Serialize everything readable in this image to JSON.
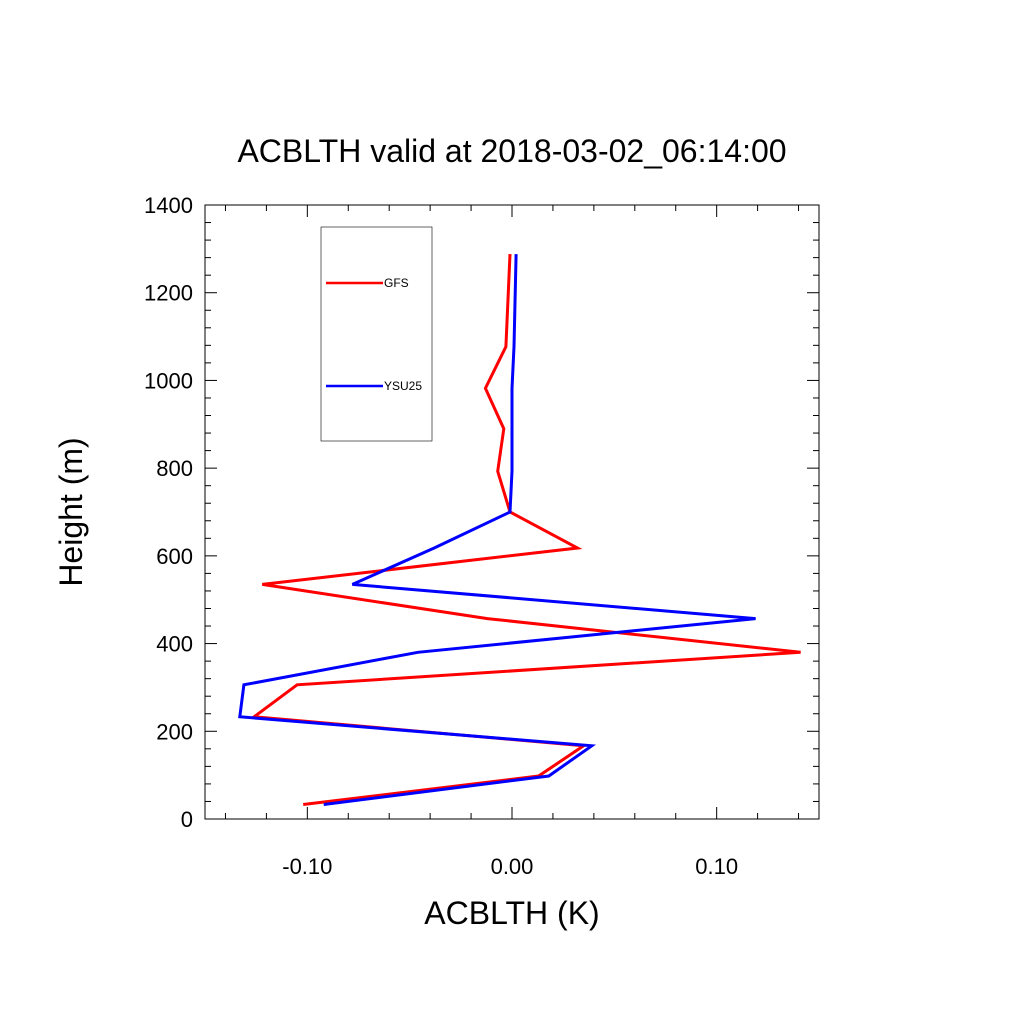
{
  "chart_data": {
    "type": "line",
    "title": "ACBLTH valid at 2018-03-02_06:14:00",
    "xlabel": "ACBLTH (K)",
    "ylabel": "Height (m)",
    "xlim": [
      -0.15,
      0.15
    ],
    "ylim": [
      0,
      1400
    ],
    "xticks": [
      -0.1,
      0.0,
      0.1
    ],
    "xtick_labels": [
      "-0.10",
      "0.00",
      "0.10"
    ],
    "yticks": [
      0,
      200,
      400,
      600,
      800,
      1000,
      1200,
      1400
    ],
    "ytick_labels": [
      "0",
      "200",
      "400",
      "600",
      "800",
      "1000",
      "1200",
      "1400"
    ],
    "grid": false,
    "legend": "upper-left",
    "series": [
      {
        "name": "GFS",
        "color": "#ff0000",
        "points": [
          [
            -0.102,
            33
          ],
          [
            0.013,
            98
          ],
          [
            0.035,
            167
          ],
          [
            -0.126,
            233
          ],
          [
            -0.105,
            306
          ],
          [
            0.141,
            380
          ],
          [
            -0.012,
            457
          ],
          [
            -0.122,
            535
          ],
          [
            0.032,
            618
          ],
          [
            -0.001,
            700
          ],
          [
            -0.007,
            793
          ],
          [
            -0.004,
            890
          ],
          [
            -0.013,
            982
          ],
          [
            -0.003,
            1077
          ],
          [
            -0.001,
            1288
          ]
        ]
      },
      {
        "name": "YSU25",
        "color": "#0000ff",
        "points": [
          [
            -0.092,
            33
          ],
          [
            0.018,
            98
          ],
          [
            0.039,
            167
          ],
          [
            -0.133,
            233
          ],
          [
            -0.131,
            306
          ],
          [
            -0.046,
            380
          ],
          [
            0.119,
            457
          ],
          [
            -0.078,
            535
          ],
          [
            -0.038,
            618
          ],
          [
            -0.001,
            700
          ],
          [
            0.0,
            793
          ],
          [
            0.0,
            890
          ],
          [
            0.0,
            982
          ],
          [
            0.001,
            1077
          ],
          [
            0.002,
            1288
          ]
        ]
      }
    ]
  }
}
